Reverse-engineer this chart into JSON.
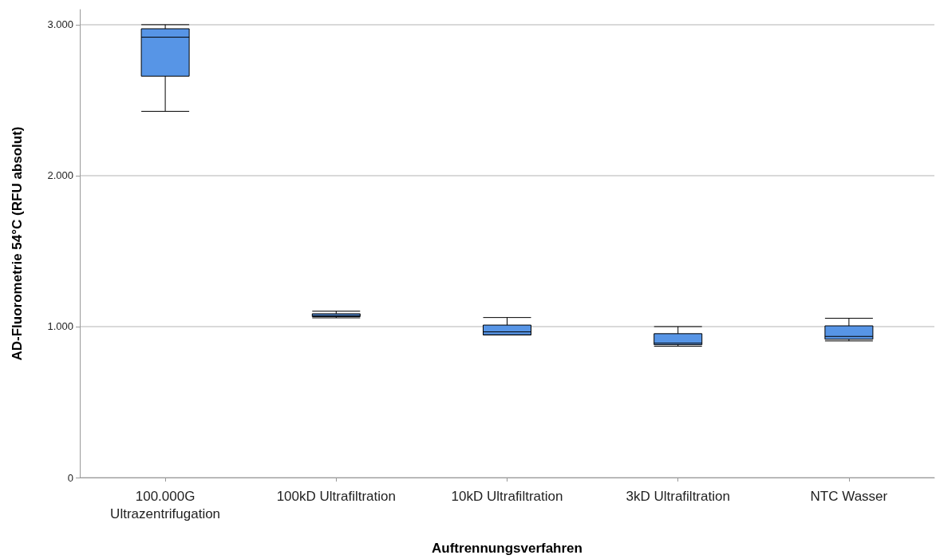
{
  "chart_data": {
    "type": "box",
    "xlabel": "Auftrennungsverfahren",
    "ylabel": "AD-Fluorometrie 54°C (RFU absolut)",
    "categories": [
      "100.000G\nUltrazentrifugation",
      "100kD Ultrafiltration",
      "10kD Ultrafiltration",
      "3kD Ultrafiltration",
      "NTC Wasser"
    ],
    "boxes": [
      {
        "low": 2426,
        "q1": 2659,
        "median": 2917,
        "q3": 2973,
        "high": 3000
      },
      {
        "low": 1058,
        "q1": 1066,
        "median": 1073,
        "q3": 1085,
        "high": 1102
      },
      {
        "low": 945,
        "q1": 945,
        "median": 965,
        "q3": 1010,
        "high": 1060
      },
      {
        "low": 870,
        "q1": 880,
        "median": 890,
        "q3": 953,
        "high": 1000
      },
      {
        "low": 905,
        "q1": 916,
        "median": 935,
        "q3": 1005,
        "high": 1055
      }
    ],
    "color": "#5795e6",
    "ylim": [
      0,
      3100
    ],
    "yticks": [
      0,
      {
        "value": 1000,
        "label": "1.000"
      },
      {
        "value": 2000,
        "label": "2.000"
      },
      {
        "value": 3000,
        "label": "3.000"
      }
    ],
    "grid": "y"
  }
}
